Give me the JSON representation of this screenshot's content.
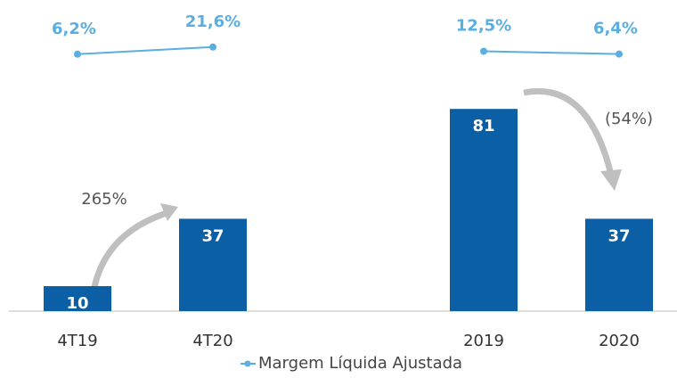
{
  "chart_data": {
    "type": "bar",
    "categories": [
      "4T19",
      "4T20",
      null,
      "2019",
      "2020"
    ],
    "values": [
      10,
      37,
      null,
      81,
      37
    ],
    "color": "#0b5fa5",
    "ylim": [
      0,
      100
    ],
    "series": [
      {
        "name": "Margem Líquida Ajustada",
        "color": "#5aaee0",
        "axis": "y2",
        "values": [
          6.2,
          21.6,
          null,
          12.5,
          6.4
        ],
        "value_labels": [
          "6,2%",
          "21,6%",
          null,
          "12,5%",
          "6,4%"
        ]
      }
    ],
    "y2lim": [
      0,
      100
    ],
    "annotations": [
      "265%",
      "(54%)"
    ]
  }
}
